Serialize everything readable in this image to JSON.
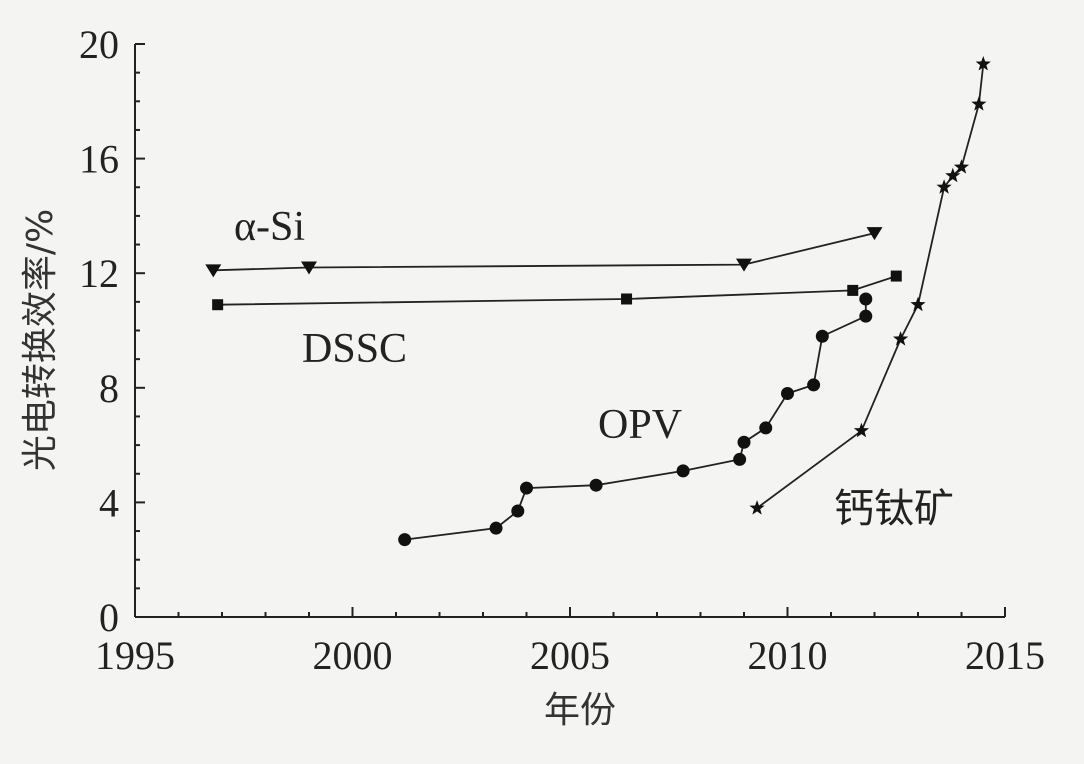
{
  "chart_data": {
    "type": "line",
    "xlabel": "年份",
    "ylabel": "光电转换效率/%",
    "xlim": [
      1995,
      2015
    ],
    "ylim": [
      0,
      20
    ],
    "xticks": [
      1995,
      2000,
      2005,
      2010,
      2015
    ],
    "yticks": [
      0,
      4,
      8,
      12,
      16,
      20
    ],
    "grid": false,
    "series": [
      {
        "name": "α-Si",
        "marker": "triangle-down",
        "x": [
          1996.8,
          1999.0,
          2009.0,
          2012.0
        ],
        "y": [
          12.1,
          12.2,
          12.3,
          13.4
        ]
      },
      {
        "name": "DSSC",
        "marker": "square",
        "x": [
          1996.9,
          2006.3,
          2011.5,
          2012.5
        ],
        "y": [
          10.9,
          11.1,
          11.4,
          11.9
        ]
      },
      {
        "name": "OPV",
        "marker": "circle",
        "x": [
          2001.2,
          2003.3,
          2003.8,
          2004.0,
          2005.6,
          2007.6,
          2008.9,
          2009.0,
          2009.5,
          2010.0,
          2010.6,
          2010.8,
          2011.8,
          2011.8
        ],
        "y": [
          2.7,
          3.1,
          3.7,
          4.5,
          4.6,
          5.1,
          5.5,
          6.1,
          6.6,
          7.8,
          8.1,
          9.8,
          10.5,
          11.1
        ]
      },
      {
        "name": "钙钛矿",
        "marker": "star",
        "x": [
          2009.3,
          2011.7,
          2012.6,
          2013.0,
          2013.6,
          2013.8,
          2014.0,
          2014.4,
          2014.5
        ],
        "y": [
          3.8,
          6.5,
          9.7,
          10.9,
          15.0,
          15.4,
          15.7,
          17.9,
          19.3
        ]
      }
    ]
  }
}
